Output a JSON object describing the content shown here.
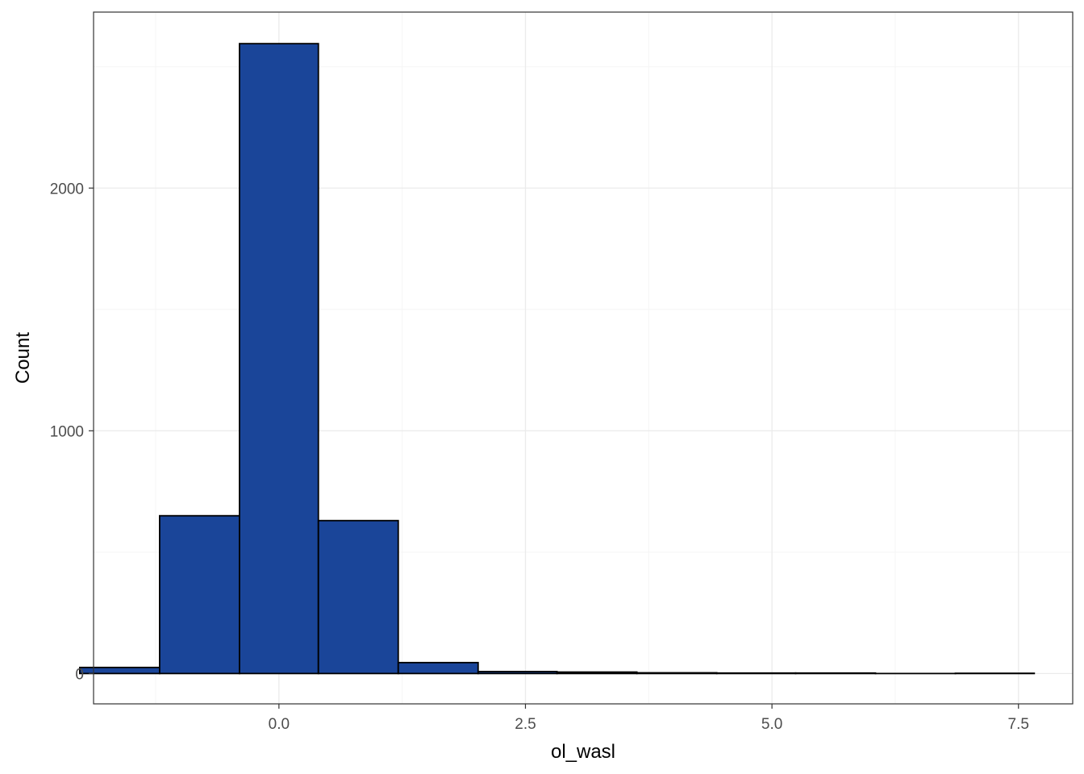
{
  "chart_data": {
    "type": "bar",
    "subtype": "histogram",
    "title": "",
    "xlabel": "ol_wasl",
    "ylabel": "Count",
    "xlim": [
      -1.88,
      8.05
    ],
    "ylim": [
      -125,
      2725
    ],
    "x_ticks": [
      0.0,
      2.5,
      5.0,
      7.5
    ],
    "x_tick_labels": [
      "0.0",
      "2.5",
      "5.0",
      "7.5"
    ],
    "y_ticks": [
      0,
      1000,
      2000
    ],
    "y_tick_labels": [
      "0",
      "1000",
      "2000"
    ],
    "bin_width": 0.806,
    "bins": [
      {
        "x0": -2.02,
        "x1": -1.21,
        "count": 25
      },
      {
        "x0": -1.21,
        "x1": -0.4,
        "count": 650
      },
      {
        "x0": -0.4,
        "x1": 0.4,
        "count": 2595
      },
      {
        "x0": 0.4,
        "x1": 1.21,
        "count": 630
      },
      {
        "x0": 1.21,
        "x1": 2.02,
        "count": 45
      },
      {
        "x0": 2.02,
        "x1": 2.82,
        "count": 8
      },
      {
        "x0": 2.82,
        "x1": 3.63,
        "count": 6
      },
      {
        "x0": 3.63,
        "x1": 4.44,
        "count": 3
      },
      {
        "x0": 4.44,
        "x1": 5.24,
        "count": 2
      },
      {
        "x0": 5.24,
        "x1": 6.05,
        "count": 2
      },
      {
        "x0": 6.05,
        "x1": 6.86,
        "count": 0
      },
      {
        "x0": 6.86,
        "x1": 7.66,
        "count": 1
      }
    ],
    "grid": true,
    "legend": "none",
    "colors": {
      "bar_fill": "#1a4599",
      "bar_stroke": "#000000",
      "grid_major": "#ebebeb",
      "grid_minor": "#f5f5f5",
      "panel_border": "#333333",
      "tick_text": "#4d4d4d"
    }
  }
}
